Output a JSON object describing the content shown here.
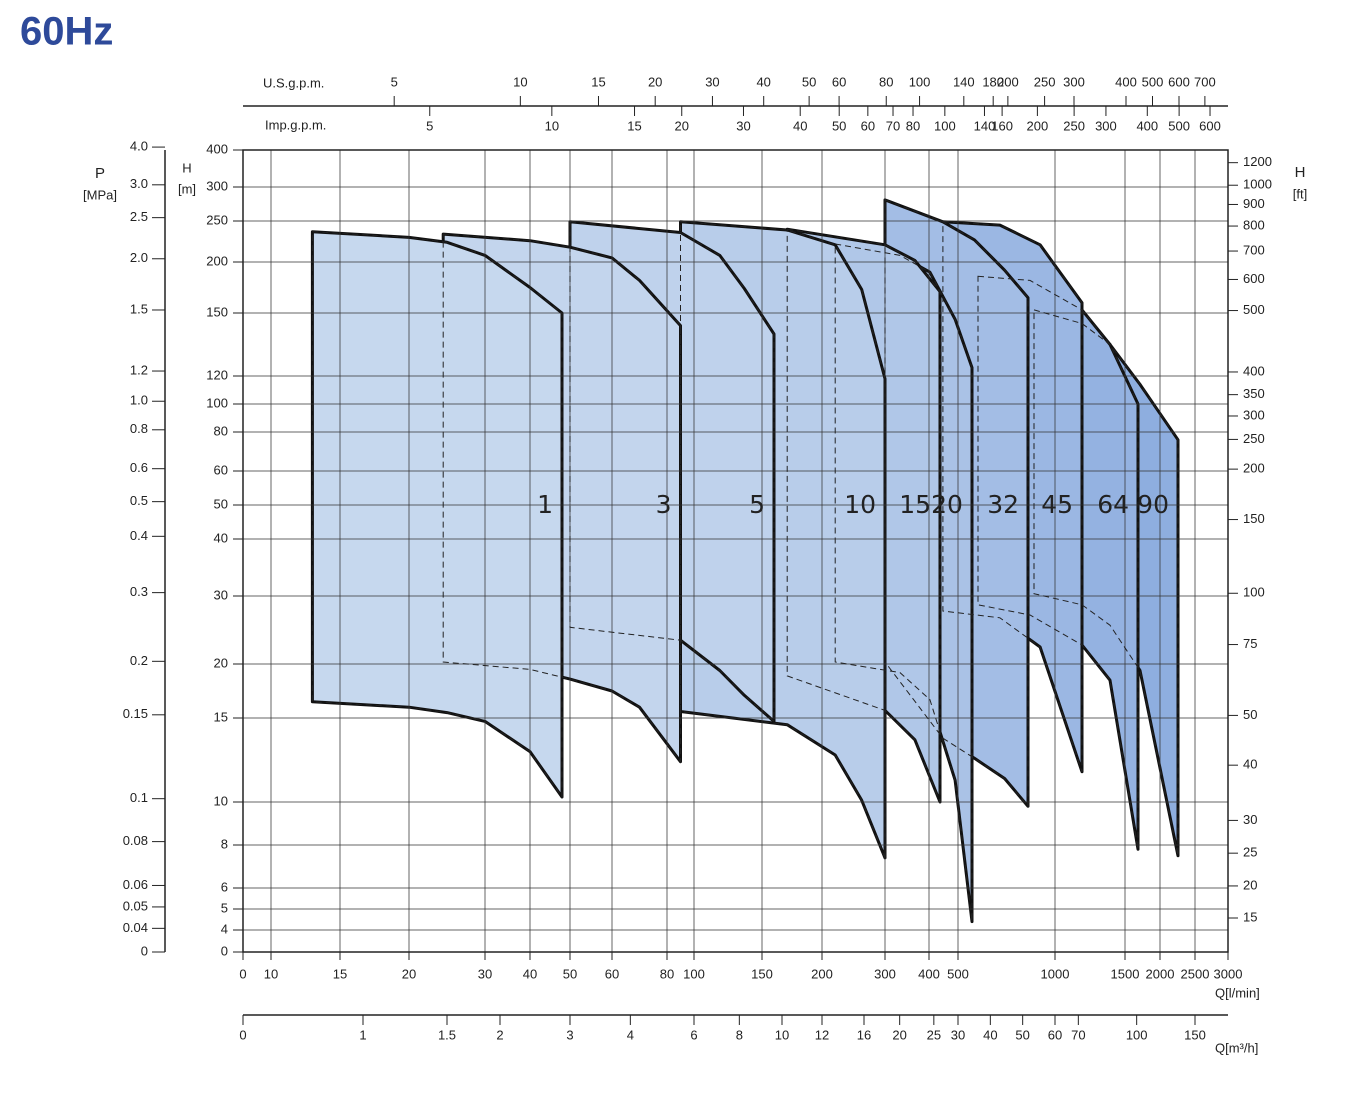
{
  "chart_data": {
    "type": "pump-curves",
    "title": "60Hz",
    "xlabel": "Q[l/min]",
    "xlim": [
      0,
      3000
    ],
    "xticks": [
      0,
      10,
      15,
      20,
      30,
      40,
      50,
      60,
      80,
      100,
      150,
      200,
      300,
      400,
      500,
      1000,
      1500,
      2000,
      2500,
      3000
    ],
    "ylabel": "H",
    "yunit": "[m]",
    "ylim": [
      0,
      400
    ],
    "yticks": [
      0,
      4,
      5,
      6,
      8,
      10,
      15,
      20,
      30,
      40,
      50,
      60,
      80,
      100,
      120,
      150,
      200,
      250,
      300,
      400
    ],
    "grid": true,
    "us_gpm": {
      "label": "U.S.g.p.m.",
      "ticks": [
        5,
        10,
        15,
        20,
        30,
        40,
        50,
        60,
        80,
        100,
        140,
        180,
        200,
        250,
        300,
        400,
        500,
        600,
        700
      ]
    },
    "imp_gpm": {
      "label": "Imp.g.p.m.",
      "ticks": [
        5,
        10,
        15,
        20,
        30,
        40,
        50,
        60,
        70,
        80,
        100,
        140,
        160,
        200,
        250,
        300,
        400,
        500,
        600
      ]
    },
    "m3h": {
      "label": "Q[m³/h]",
      "ticks": [
        0,
        1,
        1.5,
        2,
        3,
        4,
        6,
        8,
        10,
        12,
        16,
        20,
        25,
        30,
        40,
        50,
        60,
        70,
        100,
        150
      ]
    },
    "mpa": {
      "label": "P",
      "unit": "[MPa]",
      "ticks": [
        0,
        0.04,
        0.05,
        0.06,
        0.08,
        0.1,
        0.15,
        0.2,
        0.3,
        0.4,
        0.5,
        0.6,
        0.8,
        {
          "value": 1,
          "label": "1.0"
        },
        1.2,
        1.5,
        {
          "value": 2,
          "label": "2.0"
        },
        2.5,
        {
          "value": 3,
          "label": "3.0"
        },
        {
          "value": 4,
          "label": "4.0"
        }
      ]
    },
    "ft": {
      "label": "H",
      "unit": "[ft]",
      "ticks": [
        15,
        20,
        25,
        30,
        40,
        50,
        75,
        100,
        150,
        200,
        250,
        300,
        350,
        400,
        500,
        600,
        700,
        800,
        900,
        1000,
        1200
      ]
    },
    "series": [
      {
        "name": "1",
        "color": "#c6d8ee",
        "x": [
          13,
          20,
          25,
          30,
          40,
          48
        ],
        "upper": [
          237,
          230,
          224,
          208,
          175,
          150
        ],
        "lower": [
          16.5,
          16,
          15.5,
          14.8,
          13,
          10.3
        ]
      },
      {
        "name": "3",
        "color": "#c3d5ed",
        "x": [
          24.5,
          40,
          50,
          60,
          70,
          90
        ],
        "upper": [
          234,
          226,
          218,
          205,
          182,
          144
        ],
        "lower": [
          20.3,
          19.5,
          18.6,
          17.5,
          16,
          12.4
        ]
      },
      {
        "name": "5",
        "color": "#bfd2ec",
        "x": [
          50,
          90,
          119,
          137,
          160
        ],
        "upper": [
          249,
          236,
          208,
          174,
          140
        ],
        "lower": [
          25.4,
          23.5,
          19.4,
          17.1,
          14.8
        ]
      },
      {
        "name": "10",
        "color": "#b8cdea",
        "x": [
          90,
          171,
          221,
          263,
          300
        ],
        "upper": [
          249,
          239,
          221,
          173,
          118
        ],
        "lower": [
          15.6,
          14.6,
          12.8,
          10.1,
          7.4
        ]
      },
      {
        "name": "15",
        "color": "#b0c7e8",
        "x": [
          171,
          300,
          368,
          438
        ],
        "upper": [
          240,
          221,
          202,
          171
        ],
        "lower": [
          18.9,
          15.7,
          13.7,
          10
        ]
      },
      {
        "name": "20",
        "color": "#aac2e6",
        "x": [
          221,
          334,
          403,
          490,
          572
        ],
        "upper": [
          222,
          208,
          190,
          147,
          124
        ],
        "lower": [
          20.3,
          19.2,
          16.7,
          11.3,
          4.4
        ]
      },
      {
        "name": "32",
        "color": "#a3bde5",
        "x": [
          300,
          448,
          585,
          740,
          861
        ],
        "upper": [
          281,
          249,
          227,
          192,
          165
        ],
        "lower": [
          20.3,
          13.8,
          12.6,
          11.4,
          9.8
        ]
      },
      {
        "name": "45",
        "color": "#9bb7e3",
        "x": [
          448,
          716,
          923,
          1193
        ],
        "upper": [
          249,
          245,
          221,
          160
        ],
        "lower": [
          27.8,
          26.8,
          22.5,
          11.8
        ]
      },
      {
        "name": "64",
        "color": "#94b2e1",
        "x": [
          603,
          871,
          1193,
          1393,
          1686
        ],
        "upper": [
          186,
          182,
          153,
          135,
          100
        ],
        "lower": [
          28.7,
          27.2,
          22.8,
          18.5,
          7.8
        ]
      },
      {
        "name": "90",
        "color": "#8eaedf",
        "x": [
          892,
          1193,
          1393,
          1714,
          2257
        ],
        "upper": [
          153,
          145,
          135,
          114,
          76
        ],
        "lower": [
          30.4,
          28.7,
          25.7,
          19.4,
          7.5
        ]
      }
    ]
  }
}
